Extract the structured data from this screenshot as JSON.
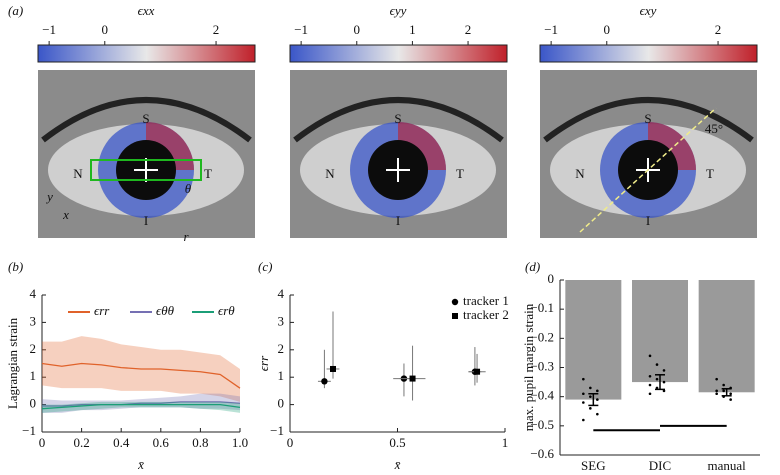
{
  "chart_data": [
    {
      "type": "colormap",
      "label": "(a)",
      "title": "ϵxx",
      "xlim": [
        -1.2,
        2.7
      ],
      "xticks": [
        {
          "value": -1,
          "label": "−1"
        },
        0,
        2
      ],
      "colors": [
        "#3a56c8",
        "#e8e8e8",
        "#c0202a"
      ],
      "annotations": [
        "S",
        "N",
        "T",
        "I",
        "θ",
        "r",
        "y",
        "x"
      ]
    },
    {
      "type": "colormap",
      "title": "ϵyy",
      "xlim": [
        -1.2,
        2.7
      ],
      "xticks": [
        {
          "value": -1,
          "label": "−1"
        },
        0,
        1,
        2
      ],
      "colors": [
        "#3a56c8",
        "#e8e8e8",
        "#c0202a"
      ],
      "annotations": [
        "S",
        "N",
        "T",
        "I"
      ]
    },
    {
      "type": "colormap",
      "title": "ϵxy",
      "xlim": [
        -1.2,
        2.7
      ],
      "xticks": [
        {
          "value": -1,
          "label": "−1"
        },
        0,
        2
      ],
      "colors": [
        "#3a56c8",
        "#e8e8e8",
        "#c0202a"
      ],
      "annotations": [
        "S",
        "N",
        "T",
        "I",
        "45°"
      ]
    },
    {
      "type": "line",
      "label": "(b)",
      "ylabel": "Lagrangian strain",
      "xlabel": "x̄",
      "x": [
        0,
        0.1,
        0.2,
        0.3,
        0.4,
        0.5,
        0.6,
        0.7,
        0.8,
        0.9,
        1.0
      ],
      "xlim": [
        0,
        1
      ],
      "xticks": [
        0,
        0.2,
        0.4,
        0.6,
        0.8,
        {
          "value": 1,
          "label": "1.0"
        }
      ],
      "ylim": [
        -1,
        4
      ],
      "yticks": [
        {
          "value": -1,
          "label": "−1"
        },
        0,
        1,
        2,
        3,
        4
      ],
      "legend": "top",
      "series": [
        {
          "name": "ϵrr",
          "color": "#e0622a",
          "values": [
            1.5,
            1.4,
            1.5,
            1.45,
            1.35,
            1.3,
            1.3,
            1.25,
            1.2,
            1.1,
            0.6
          ],
          "lower": [
            0.7,
            0.6,
            0.6,
            0.6,
            0.5,
            0.5,
            0.5,
            0.4,
            0.4,
            0.3,
            0.1
          ],
          "upper": [
            2.3,
            2.3,
            2.5,
            2.4,
            2.2,
            2.1,
            2.0,
            2.0,
            1.9,
            1.8,
            1.3
          ]
        },
        {
          "name": "ϵθθ",
          "color": "#7570b3",
          "values": [
            -0.05,
            -0.05,
            0,
            0,
            0,
            0.05,
            0.05,
            0.1,
            0.1,
            0.1,
            0.05
          ],
          "lower": [
            -0.3,
            -0.3,
            -0.2,
            -0.2,
            -0.15,
            -0.1,
            -0.1,
            -0.1,
            -0.15,
            -0.15,
            -0.2
          ],
          "upper": [
            0.2,
            0.15,
            0.15,
            0.15,
            0.15,
            0.2,
            0.25,
            0.3,
            0.4,
            0.4,
            0.3
          ]
        },
        {
          "name": "ϵrθ",
          "color": "#1b9e77",
          "values": [
            -0.15,
            -0.1,
            -0.05,
            0,
            0,
            0,
            0,
            0,
            0,
            0,
            -0.1
          ],
          "lower": [
            -0.3,
            -0.25,
            -0.2,
            -0.15,
            -0.1,
            -0.1,
            -0.1,
            -0.1,
            -0.15,
            -0.2,
            -0.3
          ],
          "upper": [
            0,
            0,
            0.05,
            0.1,
            0.1,
            0.1,
            0.1,
            0.1,
            0.1,
            0.1,
            0.05
          ]
        }
      ]
    },
    {
      "type": "errorscatter",
      "label": "(c)",
      "ylabel": "ϵrr",
      "xlabel": "x̄",
      "xlim": [
        0,
        1
      ],
      "xticks": [
        0,
        0.5,
        1
      ],
      "ylim": [
        -1,
        4
      ],
      "yticks": [
        {
          "value": -1,
          "label": "−1"
        },
        0,
        1,
        2,
        3,
        4
      ],
      "legend": "top right",
      "series": [
        {
          "name": "tracker 1",
          "marker": "circle",
          "color": "#000000",
          "x": [
            0.16,
            0.53,
            0.86
          ],
          "values": [
            0.85,
            0.95,
            1.2
          ],
          "lower": [
            0.6,
            0.3,
            0.7
          ],
          "upper": [
            2.0,
            1.5,
            2.1
          ],
          "xerr": [
            0.03,
            0.05,
            0.03
          ]
        },
        {
          "name": "tracker 2",
          "marker": "square",
          "color": "#000000",
          "x": [
            0.2,
            0.57,
            0.87
          ],
          "values": [
            1.3,
            0.95,
            1.2
          ],
          "lower": [
            0.95,
            0.15,
            0.8
          ],
          "upper": [
            3.4,
            2.15,
            1.85
          ],
          "xerr": [
            0.03,
            0.06,
            0.04
          ]
        }
      ]
    },
    {
      "type": "bar",
      "label": "(d)",
      "ylabel": "max. pupil margin strain",
      "categories": [
        "SEG",
        "DIC",
        "manual"
      ],
      "values": [
        -0.41,
        -0.35,
        -0.385
      ],
      "errors": [
        0.02,
        0.025,
        0.012
      ],
      "color": "#9a9a9a",
      "ylim": [
        -0.6,
        0
      ],
      "yticks": [
        {
          "value": -0.6,
          "label": "−0.6"
        },
        {
          "value": -0.5,
          "label": "−0.5"
        },
        {
          "value": -0.4,
          "label": "−0.4"
        },
        {
          "value": -0.3,
          "label": "−0.3"
        },
        {
          "value": -0.2,
          "label": "−0.2"
        },
        {
          "value": -0.1,
          "label": "−0.1"
        },
        0
      ],
      "points": [
        [
          -0.34,
          -0.37,
          -0.38,
          -0.39,
          -0.4,
          -0.41,
          -0.42,
          -0.44,
          -0.46,
          -0.48
        ],
        [
          -0.26,
          -0.29,
          -0.31,
          -0.33,
          -0.34,
          -0.35,
          -0.36,
          -0.37,
          -0.38,
          -0.39
        ],
        [
          -0.34,
          -0.36,
          -0.37,
          -0.38,
          -0.38,
          -0.39,
          -0.39,
          -0.4,
          -0.41
        ]
      ]
    }
  ]
}
